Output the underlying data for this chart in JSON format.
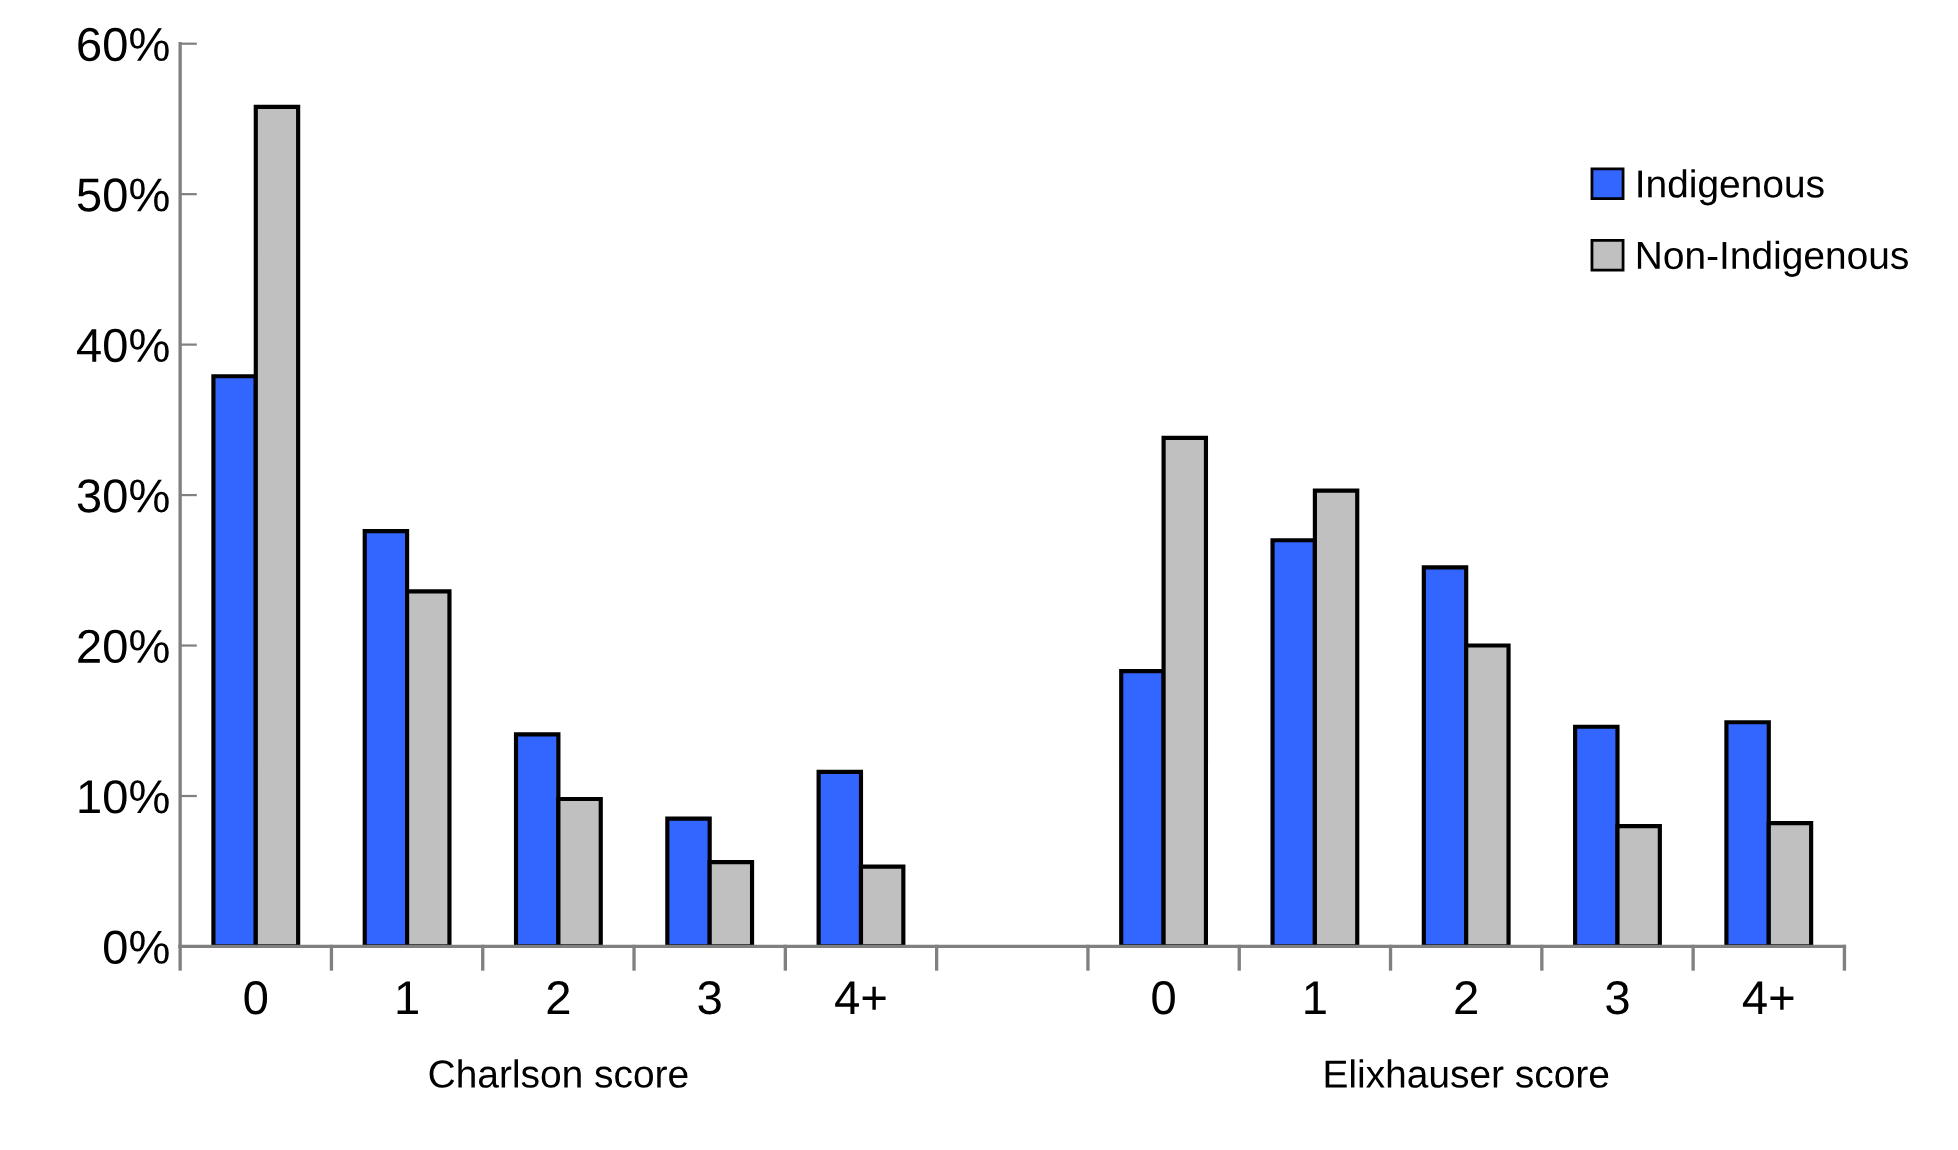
{
  "chart_data": {
    "type": "bar",
    "categories": [
      "0",
      "1",
      "2",
      "3",
      "4+",
      null,
      "0",
      "1",
      "2",
      "3",
      "4+"
    ],
    "series": [
      {
        "name": "Indigenous",
        "color": "#3366ff",
        "values": [
          37.9,
          27.6,
          14.1,
          8.5,
          11.6,
          null,
          18.3,
          27.0,
          25.2,
          14.6,
          14.9
        ]
      },
      {
        "name": "Non-Indigenous",
        "color": "#c0c0c0",
        "values": [
          55.8,
          23.6,
          9.8,
          5.6,
          5.3,
          null,
          33.8,
          30.3,
          20.0,
          8.0,
          8.2
        ]
      }
    ],
    "ylim": [
      0,
      60
    ],
    "yticks": [
      {
        "value": 0,
        "label": "0%"
      },
      {
        "value": 10,
        "label": "10%"
      },
      {
        "value": 20,
        "label": "20%"
      },
      {
        "value": 30,
        "label": "30%"
      },
      {
        "value": 40,
        "label": "40%"
      },
      {
        "value": 50,
        "label": "50%"
      },
      {
        "value": 60,
        "label": "60%"
      }
    ],
    "annotations": [
      "Charlson score",
      "Elixhauser score"
    ],
    "legend": "top right",
    "grid": false
  }
}
